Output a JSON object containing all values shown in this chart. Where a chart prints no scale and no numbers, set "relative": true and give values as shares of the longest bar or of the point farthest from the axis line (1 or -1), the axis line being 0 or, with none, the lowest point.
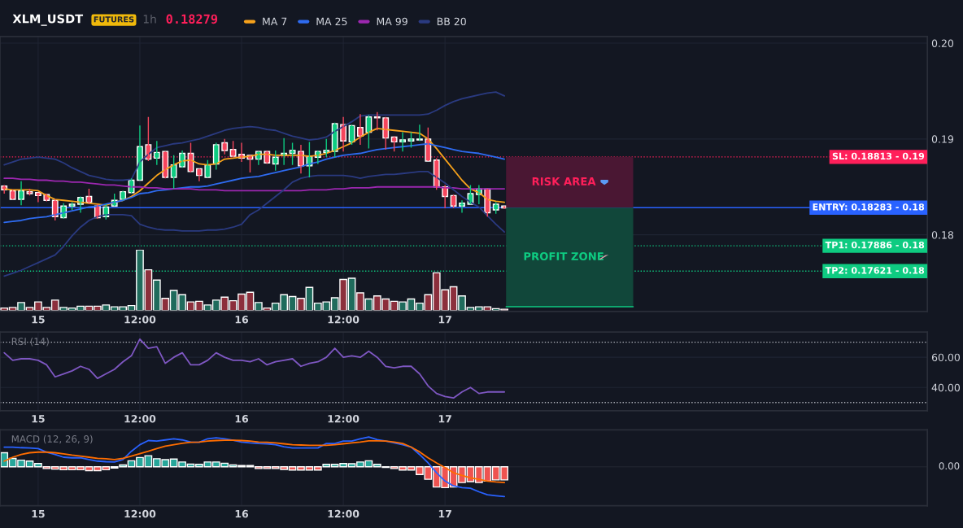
{
  "chart_data": [
    {
      "type": "candlestick",
      "title": "XLM_USDT",
      "annotations": [
        "FUTURES",
        "1h",
        "0.18279",
        "RISK AREA",
        "PROFIT ZONE"
      ],
      "categories": [
        null,
        null,
        null,
        null,
        "15",
        null,
        null,
        null,
        null,
        null,
        null,
        null,
        null,
        null,
        null,
        null,
        "12:00",
        null,
        null,
        null,
        null,
        null,
        null,
        null,
        null,
        null,
        null,
        null,
        "16",
        null,
        null,
        null,
        null,
        null,
        null,
        null,
        null,
        null,
        null,
        null,
        "12:00",
        null,
        null,
        null,
        null,
        null,
        null,
        null,
        null,
        null,
        null,
        null,
        "17",
        null,
        null,
        null,
        null,
        null,
        null,
        null
      ],
      "ohlc": [
        [
          0.1851,
          0.1852,
          0.1843,
          0.1847
        ],
        [
          0.1846,
          0.1847,
          0.1837,
          0.1837
        ],
        [
          0.1837,
          0.1856,
          0.1831,
          0.1846
        ],
        [
          0.1845,
          0.1848,
          0.1841,
          0.1843
        ],
        [
          0.1844,
          0.1844,
          0.1834,
          0.1841
        ],
        [
          0.1842,
          0.1843,
          0.1835,
          0.1836
        ],
        [
          0.1836,
          0.1837,
          0.1815,
          0.1819
        ],
        [
          0.1818,
          0.1833,
          0.1817,
          0.183
        ],
        [
          0.183,
          0.1834,
          0.1826,
          0.1832
        ],
        [
          0.1832,
          0.184,
          0.1823,
          0.1839
        ],
        [
          0.184,
          0.1848,
          0.1832,
          0.1834
        ],
        [
          0.183,
          0.1832,
          0.1817,
          0.1818
        ],
        [
          0.1819,
          0.1832,
          0.1816,
          0.1829
        ],
        [
          0.183,
          0.1843,
          0.183,
          0.1836
        ],
        [
          0.1837,
          0.1846,
          0.1836,
          0.1845
        ],
        [
          0.1844,
          0.1859,
          0.1843,
          0.1857
        ],
        [
          0.1857,
          0.1914,
          0.1857,
          0.1892
        ],
        [
          0.1894,
          0.1923,
          0.1877,
          0.1879
        ],
        [
          0.188,
          0.1898,
          0.1873,
          0.1886
        ],
        [
          0.1887,
          0.1887,
          0.1859,
          0.186
        ],
        [
          0.186,
          0.1883,
          0.1848,
          0.1873
        ],
        [
          0.1871,
          0.1888,
          0.187,
          0.1885
        ],
        [
          0.1885,
          0.1896,
          0.1865,
          0.1866
        ],
        [
          0.1869,
          0.1869,
          0.1856,
          0.1862
        ],
        [
          0.186,
          0.1878,
          0.186,
          0.1873
        ],
        [
          0.1874,
          0.1896,
          0.1868,
          0.1894
        ],
        [
          0.1896,
          0.19,
          0.1884,
          0.1888
        ],
        [
          0.1889,
          0.1898,
          0.1881,
          0.1882
        ],
        [
          0.1884,
          0.1896,
          0.1876,
          0.188
        ],
        [
          0.1883,
          0.1883,
          0.1865,
          0.1879
        ],
        [
          0.1879,
          0.1887,
          0.1873,
          0.1887
        ],
        [
          0.1887,
          0.1888,
          0.1874,
          0.1875
        ],
        [
          0.1874,
          0.1888,
          0.1867,
          0.1881
        ],
        [
          0.1883,
          0.1901,
          0.1873,
          0.1885
        ],
        [
          0.1885,
          0.1896,
          0.1873,
          0.1888
        ],
        [
          0.1887,
          0.1894,
          0.1864,
          0.1872
        ],
        [
          0.1872,
          0.1897,
          0.186,
          0.1882
        ],
        [
          0.1881,
          0.1888,
          0.1874,
          0.1887
        ],
        [
          0.1886,
          0.19,
          0.1881,
          0.1888
        ],
        [
          0.1887,
          0.1917,
          0.1881,
          0.1916
        ],
        [
          0.1915,
          0.1923,
          0.1887,
          0.1898
        ],
        [
          0.1897,
          0.1915,
          0.1894,
          0.1914
        ],
        [
          0.1912,
          0.1926,
          0.1894,
          0.1903
        ],
        [
          0.1907,
          0.1925,
          0.189,
          0.1923
        ],
        [
          0.1923,
          0.1928,
          0.1909,
          0.1922
        ],
        [
          0.1922,
          0.1923,
          0.1889,
          0.1901
        ],
        [
          0.1902,
          0.1903,
          0.1887,
          0.1897
        ],
        [
          0.1897,
          0.1907,
          0.1887,
          0.1899
        ],
        [
          0.1898,
          0.1907,
          0.1891,
          0.19
        ],
        [
          0.1899,
          0.1915,
          0.1898,
          0.19
        ],
        [
          0.19,
          0.1912,
          0.1877,
          0.1877
        ],
        [
          0.1878,
          0.188,
          0.1847,
          0.185
        ],
        [
          0.185,
          0.1852,
          0.1828,
          0.184
        ],
        [
          0.1841,
          0.1842,
          0.1828,
          0.183
        ],
        [
          0.183,
          0.1836,
          0.1823,
          0.1833
        ],
        [
          0.1832,
          0.1852,
          0.1832,
          0.1843
        ],
        [
          0.1842,
          0.1852,
          0.1832,
          0.1848
        ],
        [
          0.1848,
          0.1848,
          0.1819,
          0.1823
        ],
        [
          0.1826,
          0.1834,
          0.1822,
          0.1832
        ],
        [
          0.183,
          0.183,
          0.1827,
          0.1828
        ]
      ],
      "colors": [
        "#f6465d",
        "#f6465d",
        "#0ecb81",
        "#f6465d",
        "#f6465d",
        "#f6465d",
        "#f6465d",
        "#0ecb81",
        "#0ecb81",
        "#0ecb81",
        "#f6465d",
        "#f6465d",
        "#0ecb81",
        "#0ecb81",
        "#0ecb81",
        "#0ecb81",
        "#0ecb81",
        "#f6465d",
        "#0ecb81",
        "#f6465d",
        "#0ecb81",
        "#0ecb81",
        "#f6465d",
        "#f6465d",
        "#0ecb81",
        "#0ecb81",
        "#f6465d",
        "#f6465d",
        "#f6465d",
        "#f6465d",
        "#0ecb81",
        "#f6465d",
        "#0ecb81",
        "#0ecb81",
        "#0ecb81",
        "#f6465d",
        "#0ecb81",
        "#0ecb81",
        "#0ecb81",
        "#0ecb81",
        "#f6465d",
        "#0ecb81",
        "#f6465d",
        "#0ecb81",
        "#f6465d",
        "#f6465d",
        "#f6465d",
        "#0ecb81",
        "#0ecb81",
        "#0ecb81",
        "#f6465d",
        "#f6465d",
        "#f6465d",
        "#f6465d",
        "#0ecb81",
        "#0ecb81",
        "#0ecb81",
        "#f6465d",
        "#0ecb81",
        "#f6465d"
      ],
      "series": [
        {
          "name": "MA 7",
          "type": "line",
          "color": "#f7a21b",
          "values": [
            0.1848,
            0.1847,
            0.1847,
            0.1847,
            0.1846,
            0.1841,
            0.1837,
            0.1836,
            0.1835,
            0.1834,
            0.1833,
            0.1832,
            0.1831,
            0.1834,
            0.1836,
            0.184,
            0.1846,
            0.1854,
            0.1862,
            0.1868,
            0.1873,
            0.1877,
            0.1878,
            0.1874,
            0.1873,
            0.1874,
            0.1879,
            0.188,
            0.1881,
            0.1882,
            0.1884,
            0.1884,
            0.1883,
            0.1883,
            0.1883,
            0.1883,
            0.1882,
            0.1883,
            0.1885,
            0.1888,
            0.1892,
            0.1896,
            0.1902,
            0.1907,
            0.1911,
            0.191,
            0.1909,
            0.1908,
            0.1907,
            0.1906,
            0.19,
            0.189,
            0.1879,
            0.1868,
            0.1857,
            0.1848,
            0.1844,
            0.1837,
            0.1835,
            0.1834
          ]
        },
        {
          "name": "MA 25",
          "type": "line",
          "color": "#2e6bf0",
          "values": [
            0.1813,
            0.1814,
            0.1815,
            0.1817,
            0.1818,
            0.1819,
            0.1821,
            0.1823,
            0.1825,
            0.1827,
            0.1829,
            0.183,
            0.1832,
            0.1834,
            0.1836,
            0.1839,
            0.1843,
            0.1844,
            0.1846,
            0.1847,
            0.1848,
            0.1849,
            0.185,
            0.185,
            0.1851,
            0.1853,
            0.1855,
            0.1857,
            0.1859,
            0.186,
            0.1861,
            0.1863,
            0.1865,
            0.1867,
            0.1869,
            0.1871,
            0.1874,
            0.1876,
            0.1879,
            0.1881,
            0.1883,
            0.1884,
            0.1885,
            0.1887,
            0.1889,
            0.189,
            0.1891,
            0.1892,
            0.1893,
            0.1894,
            0.1895,
            0.1893,
            0.1891,
            0.1889,
            0.1887,
            0.1886,
            0.1885,
            0.1883,
            0.1881,
            0.1879
          ]
        },
        {
          "name": "MA 99",
          "type": "line",
          "color": "#9c27b0",
          "values": [
            0.1859,
            0.1859,
            0.1858,
            0.1858,
            0.1857,
            0.1857,
            0.1856,
            0.1856,
            0.1855,
            0.1855,
            0.1854,
            0.1853,
            0.1852,
            0.1852,
            0.1851,
            0.185,
            0.185,
            0.1849,
            0.1849,
            0.1848,
            0.1848,
            0.1848,
            0.1848,
            0.1847,
            0.1847,
            0.1847,
            0.1846,
            0.1846,
            0.1846,
            0.1846,
            0.1846,
            0.1846,
            0.1846,
            0.1846,
            0.1846,
            0.1846,
            0.1847,
            0.1847,
            0.1847,
            0.1848,
            0.1848,
            0.1849,
            0.1849,
            0.1849,
            0.185,
            0.185,
            0.185,
            0.185,
            0.185,
            0.185,
            0.185,
            0.185,
            0.1849,
            0.1849,
            0.1848,
            0.1848,
            0.1848,
            0.1848,
            0.1848,
            0.1848
          ]
        },
        {
          "name": "BB 20",
          "type": "line",
          "color": "#2a3a80",
          "values": [
            0.1873,
            0.1876,
            0.1879,
            0.188,
            0.1881,
            0.188,
            0.1879,
            0.1875,
            0.187,
            0.1866,
            0.1862,
            0.186,
            0.1858,
            0.1857,
            0.1857,
            0.1858,
            0.1876,
            0.1884,
            0.1891,
            0.1893,
            0.1895,
            0.1896,
            0.1898,
            0.19,
            0.1903,
            0.1906,
            0.1909,
            0.1911,
            0.1912,
            0.1913,
            0.1912,
            0.191,
            0.1909,
            0.1906,
            0.1903,
            0.1901,
            0.1899,
            0.19,
            0.1902,
            0.1908,
            0.1913,
            0.1918,
            0.1924,
            0.1925,
            0.1925,
            0.1925,
            0.1925,
            0.1925,
            0.1925,
            0.1925,
            0.1926,
            0.193,
            0.1935,
            0.1939,
            0.1942,
            0.1944,
            0.1946,
            0.1948,
            0.1949,
            0.1945
          ]
        },
        {
          "type": "line",
          "color": "#2a3a80",
          "values": [
            0.1757,
            0.176,
            0.1763,
            0.1767,
            0.1771,
            0.1775,
            0.1779,
            0.1788,
            0.1799,
            0.1808,
            0.1815,
            0.1819,
            0.1821,
            0.1821,
            0.1821,
            0.182,
            0.1811,
            0.1808,
            0.1806,
            0.1805,
            0.1805,
            0.1804,
            0.1804,
            0.1804,
            0.1805,
            0.1805,
            0.1806,
            0.1808,
            0.1811,
            0.1821,
            0.1826,
            0.1833,
            0.184,
            0.1847,
            0.1855,
            0.1859,
            0.1861,
            0.1862,
            0.1862,
            0.1862,
            0.1862,
            0.1861,
            0.1859,
            0.1861,
            0.1862,
            0.1863,
            0.1863,
            0.1864,
            0.1865,
            0.1866,
            0.1866,
            0.186,
            0.1854,
            0.1847,
            0.184,
            0.1834,
            0.1829,
            0.182,
            0.1811,
            0.1803
          ]
        }
      ],
      "ylim": [
        0.172,
        0.2007
      ],
      "yticks": [
        0.18,
        0.19,
        {
          "value": 0.2,
          "label": "0.20"
        }
      ],
      "ref_lines": [
        {
          "axis": "y",
          "value": 0.18813,
          "label": "SL: 0.18813 - 0.19",
          "color": "#ff1f5a",
          "line_style": "dotted"
        },
        {
          "axis": "y",
          "value": 0.18283,
          "label": "ENTRY: 0.18283 - 0.18",
          "color": "#2962ff",
          "line_style": "solid"
        },
        {
          "axis": "y",
          "value": 0.17886,
          "label": "TP1: 0.17886 - 0.18",
          "color": "#0ecb81",
          "line_style": "dotted"
        },
        {
          "axis": "y",
          "value": 0.17621,
          "label": "TP2: 0.17621 - 0.18",
          "color": "#0ecb81",
          "line_style": "dotted"
        }
      ],
      "legend": "top",
      "grid": true
    },
    {
      "type": "bar",
      "relative": true,
      "categories": [
        null,
        null,
        null,
        null,
        null,
        null,
        null,
        null,
        null,
        null,
        null,
        null,
        null,
        null,
        null,
        null,
        null,
        null,
        null,
        null,
        null,
        null,
        null,
        null,
        null,
        null,
        null,
        null,
        null,
        null,
        null,
        null,
        null,
        null,
        null,
        null,
        null,
        null,
        null,
        null,
        null,
        null,
        null,
        null,
        null,
        null,
        null,
        null,
        null,
        null,
        null,
        null,
        null,
        null,
        null,
        null,
        null,
        null,
        null,
        null
      ],
      "values": [
        0.04,
        0.05,
        0.13,
        0.05,
        0.14,
        0.05,
        0.17,
        0.05,
        0.04,
        0.07,
        0.07,
        0.07,
        0.09,
        0.06,
        0.06,
        0.08,
        1,
        0.67,
        0.5,
        0.2,
        0.33,
        0.26,
        0.14,
        0.15,
        0.09,
        0.17,
        0.22,
        0.16,
        0.27,
        0.3,
        0.13,
        0.04,
        0.12,
        0.26,
        0.23,
        0.2,
        0.38,
        0.12,
        0.14,
        0.21,
        0.51,
        0.53,
        0.29,
        0.19,
        0.24,
        0.19,
        0.15,
        0.14,
        0.19,
        0.12,
        0.26,
        0.62,
        0.34,
        0.39,
        0.24,
        0.05,
        0.06,
        0.06,
        0.03,
        0.02
      ],
      "colors": [
        "#8c2f3c",
        "#8c2f3c",
        "#1f6b5c",
        "#8c2f3c",
        "#8c2f3c",
        "#8c2f3c",
        "#8c2f3c",
        "#1f6b5c",
        "#1f6b5c",
        "#1f6b5c",
        "#8c2f3c",
        "#8c2f3c",
        "#1f6b5c",
        "#1f6b5c",
        "#1f6b5c",
        "#1f6b5c",
        "#1f6b5c",
        "#8c2f3c",
        "#1f6b5c",
        "#8c2f3c",
        "#1f6b5c",
        "#1f6b5c",
        "#8c2f3c",
        "#8c2f3c",
        "#1f6b5c",
        "#1f6b5c",
        "#8c2f3c",
        "#8c2f3c",
        "#8c2f3c",
        "#8c2f3c",
        "#1f6b5c",
        "#8c2f3c",
        "#1f6b5c",
        "#1f6b5c",
        "#1f6b5c",
        "#8c2f3c",
        "#1f6b5c",
        "#1f6b5c",
        "#1f6b5c",
        "#1f6b5c",
        "#8c2f3c",
        "#1f6b5c",
        "#8c2f3c",
        "#1f6b5c",
        "#8c2f3c",
        "#8c2f3c",
        "#8c2f3c",
        "#1f6b5c",
        "#1f6b5c",
        "#1f6b5c",
        "#8c2f3c",
        "#8c2f3c",
        "#8c2f3c",
        "#8c2f3c",
        "#1f6b5c",
        "#1f6b5c",
        "#1f6b5c",
        "#8c2f3c",
        "#1f6b5c",
        "#8c2f3c"
      ]
    },
    {
      "type": "line",
      "title": "RSI (14)",
      "categories": [
        null,
        null,
        null,
        null,
        "15",
        null,
        null,
        null,
        null,
        null,
        null,
        null,
        null,
        null,
        null,
        null,
        "12:00",
        null,
        null,
        null,
        null,
        null,
        null,
        null,
        null,
        null,
        null,
        null,
        "16",
        null,
        null,
        null,
        null,
        null,
        null,
        null,
        null,
        null,
        null,
        null,
        "12:00",
        null,
        null,
        null,
        null,
        null,
        null,
        null,
        null,
        null,
        null,
        null,
        "17",
        null,
        null,
        null,
        null,
        null,
        null,
        null
      ],
      "series": [
        {
          "color": "#7e57c2",
          "values": [
            63,
            58,
            59,
            59,
            58,
            55,
            47,
            49,
            51,
            54,
            52,
            46,
            49,
            52,
            57,
            61,
            72,
            66,
            67,
            56,
            60,
            63,
            55,
            55,
            58,
            63,
            60,
            58,
            58,
            57,
            59,
            55,
            57,
            58,
            59,
            54,
            56,
            57,
            60,
            66,
            60,
            61,
            60,
            64,
            60,
            54,
            53,
            54,
            54,
            49,
            41,
            36,
            34,
            33,
            37,
            40,
            36,
            37,
            37,
            37
          ]
        }
      ],
      "ylim": [
        24.5,
        76.7
      ],
      "yticks": [
        {
          "value": 60,
          "label": "60.00"
        },
        {
          "value": 40,
          "label": "40.00"
        }
      ],
      "ref_lines": [
        {
          "axis": "y",
          "value": 70,
          "color": "#b2b5be",
          "line_style": "dotted"
        },
        {
          "axis": "y",
          "value": 30,
          "color": "#b2b5be",
          "line_style": "dotted"
        }
      ],
      "grid": true
    },
    {
      "type": "bar",
      "title": "MACD (12, 26, 9)",
      "relative": true,
      "categories": [
        null,
        null,
        null,
        null,
        "15",
        null,
        null,
        null,
        null,
        null,
        null,
        null,
        null,
        null,
        null,
        null,
        "12:00",
        null,
        null,
        null,
        null,
        null,
        null,
        null,
        null,
        null,
        null,
        null,
        "16",
        null,
        null,
        null,
        null,
        null,
        null,
        null,
        null,
        null,
        null,
        null,
        "12:00",
        null,
        null,
        null,
        null,
        null,
        null,
        null,
        null,
        null,
        null,
        null,
        "17",
        null,
        null,
        null,
        null,
        null,
        null,
        null
      ],
      "series": [
        {
          "type": "bar",
          "colors": [
            "#26a69a",
            "#26a69a",
            "#26a69a",
            "#26a69a",
            "#26a69a",
            "#ef5350",
            "#ef5350",
            "#ef5350",
            "#ef5350",
            "#ef5350",
            "#ef5350",
            "#ef5350",
            "#ef5350",
            "#ef5350",
            "#26a69a",
            "#26a69a",
            "#26a69a",
            "#26a69a",
            "#26a69a",
            "#26a69a",
            "#26a69a",
            "#26a69a",
            "#26a69a",
            "#26a69a",
            "#26a69a",
            "#26a69a",
            "#26a69a",
            "#26a69a",
            "#26a69a",
            "#26a69a",
            "#ef5350",
            "#ef5350",
            "#ef5350",
            "#ef5350",
            "#ef5350",
            "#ef5350",
            "#ef5350",
            "#ef5350",
            "#26a69a",
            "#26a69a",
            "#26a69a",
            "#26a69a",
            "#26a69a",
            "#26a69a",
            "#26a69a",
            "#ef5350",
            "#ef5350",
            "#ef5350",
            "#ef5350",
            "#ef5350",
            "#ef5350",
            "#ef5350",
            "#ef5350",
            "#ef5350",
            "#ef5350",
            "#ef5350",
            "#ef5350",
            "#ef5350",
            "#ef5350",
            "#ef5350"
          ],
          "values": [
            0.47,
            0.28,
            0.22,
            0.19,
            0.11,
            -0.06,
            -0.08,
            -0.1,
            -0.1,
            -0.1,
            -0.13,
            -0.13,
            -0.1,
            -0.04,
            0.06,
            0.2,
            0.31,
            0.37,
            0.27,
            0.24,
            0.26,
            0.16,
            0.09,
            0.08,
            0.16,
            0.16,
            0.12,
            0.06,
            0.04,
            0.04,
            -0.06,
            -0.06,
            -0.06,
            -0.09,
            -0.11,
            -0.11,
            -0.11,
            -0.11,
            0.08,
            0.08,
            0.11,
            0.1,
            0.16,
            0.2,
            0.08,
            -0.02,
            -0.06,
            -0.11,
            -0.11,
            -0.26,
            -0.42,
            -0.68,
            -0.7,
            -0.68,
            -0.53,
            -0.5,
            -0.53,
            -0.48,
            -0.44,
            -0.44
          ]
        },
        {
          "type": "line",
          "color": "#2962ff",
          "values": [
            0.66,
            0.66,
            0.64,
            0.63,
            0.61,
            0.49,
            0.41,
            0.32,
            0.3,
            0.3,
            0.24,
            0.19,
            0.17,
            0.16,
            0.24,
            0.52,
            0.74,
            0.88,
            0.86,
            0.9,
            0.94,
            0.9,
            0.83,
            0.82,
            0.94,
            0.97,
            0.94,
            0.89,
            0.83,
            0.8,
            0.78,
            0.77,
            0.74,
            0.67,
            0.63,
            0.63,
            0.63,
            0.63,
            0.78,
            0.78,
            0.86,
            0.86,
            0.94,
            1,
            0.91,
            0.86,
            0.8,
            0.74,
            0.66,
            0.41,
            0.13,
            -0.2,
            -0.48,
            -0.64,
            -0.7,
            -0.72,
            -0.84,
            -0.94,
            -0.97,
            -1
          ]
        },
        {
          "type": "line",
          "color": "#ff6d00",
          "values": [
            0.19,
            0.32,
            0.41,
            0.47,
            0.49,
            0.49,
            0.47,
            0.43,
            0.39,
            0.36,
            0.32,
            0.28,
            0.27,
            0.24,
            0.28,
            0.36,
            0.44,
            0.52,
            0.61,
            0.69,
            0.74,
            0.79,
            0.82,
            0.83,
            0.86,
            0.88,
            0.89,
            0.89,
            0.88,
            0.86,
            0.83,
            0.82,
            0.8,
            0.77,
            0.74,
            0.73,
            0.72,
            0.72,
            0.72,
            0.74,
            0.77,
            0.8,
            0.83,
            0.87,
            0.87,
            0.86,
            0.83,
            0.78,
            0.66,
            0.5,
            0.3,
            0.13,
            -0.03,
            -0.2,
            -0.29,
            -0.37,
            -0.42,
            -0.48,
            -0.51,
            -0.53
          ]
        }
      ],
      "ref_lines": [
        {
          "axis": "y",
          "value": 0,
          "label": "0.00",
          "color": "#1e222d",
          "line_style": "solid"
        }
      ],
      "grid": true
    }
  ]
}
